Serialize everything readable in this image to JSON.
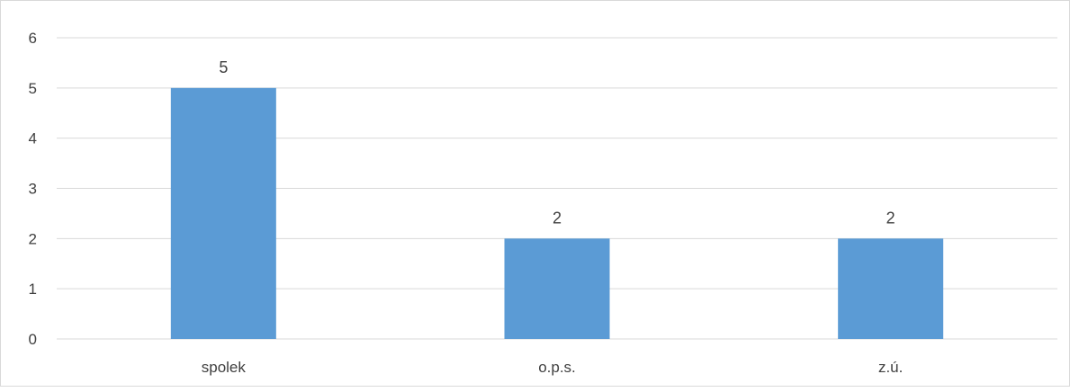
{
  "chart_data": {
    "type": "bar",
    "categories": [
      "spolek",
      "o.p.s.",
      "z.ú."
    ],
    "values": [
      5,
      2,
      2
    ],
    "data_labels": [
      "5",
      "2",
      "2"
    ],
    "title": "",
    "xlabel": "",
    "ylabel": "",
    "ylim": [
      0,
      6
    ],
    "yticks": [
      0,
      1,
      2,
      3,
      4,
      5,
      6
    ],
    "ytick_labels": [
      "0",
      "1",
      "2",
      "3",
      "4",
      "5",
      "6"
    ],
    "grid": true,
    "legend": "none",
    "colors": {
      "bar": "#5b9bd5",
      "grid": "#d9d9d9",
      "text": "#404040",
      "border": "#d9d9d9"
    }
  }
}
